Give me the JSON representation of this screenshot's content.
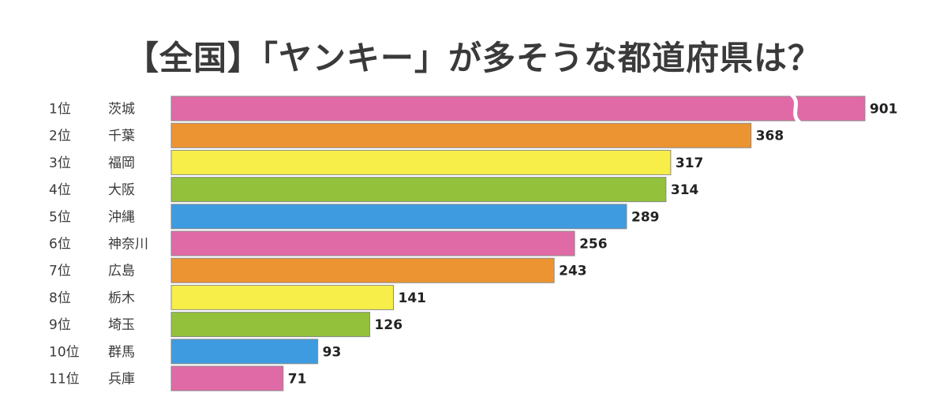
{
  "page": {
    "title": "【全国】「ヤンキー」が多そうな都道府県は？"
  },
  "chart_data": {
    "type": "bar",
    "orientation": "horizontal",
    "title": "【全国】「ヤンキー」が多そうな都道府県は？",
    "categories": [
      "茨城",
      "千葉",
      "福岡",
      "大阪",
      "沖縄",
      "神奈川",
      "広島",
      "栃木",
      "埼玉",
      "群馬",
      "兵庫"
    ],
    "ranks": [
      "1位",
      "2位",
      "3位",
      "4位",
      "5位",
      "6位",
      "7位",
      "8位",
      "9位",
      "10位",
      "11位"
    ],
    "values": [
      901,
      368,
      317,
      314,
      289,
      256,
      243,
      141,
      126,
      93,
      71
    ],
    "colors": [
      "#e06aa6",
      "#ec9432",
      "#f7ee4a",
      "#93c13c",
      "#3e9be0",
      "#e06aa6",
      "#ec9432",
      "#f7ee4a",
      "#93c13c",
      "#3e9be0",
      "#e06aa6"
    ],
    "axis_break_on_first_bar": true,
    "grid": false,
    "legend": "none"
  }
}
